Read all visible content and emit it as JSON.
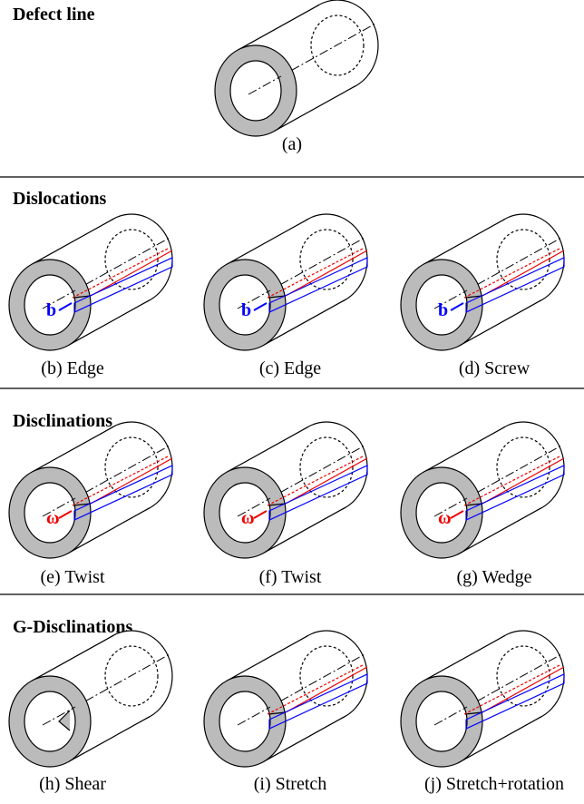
{
  "sections": [
    {
      "title": "Defect line",
      "items": [
        {
          "caption": "(a)"
        }
      ]
    },
    {
      "title": "Dislocations",
      "items": [
        {
          "caption": "(b) Edge",
          "symbol": "b"
        },
        {
          "caption": "(c) Edge",
          "symbol": "b"
        },
        {
          "caption": "(d) Screw",
          "symbol": "b"
        }
      ]
    },
    {
      "title": "Disclinations",
      "items": [
        {
          "caption": "(e) Twist",
          "symbol": "ω"
        },
        {
          "caption": "(f) Twist",
          "symbol": "ω"
        },
        {
          "caption": "(g) Wedge",
          "symbol": "ω"
        }
      ]
    },
    {
      "title": "G-Disclinations",
      "items": [
        {
          "caption": "(h) Shear"
        },
        {
          "caption": "(i) Stretch"
        },
        {
          "caption": "(j) Stretch+rotation"
        }
      ]
    }
  ]
}
